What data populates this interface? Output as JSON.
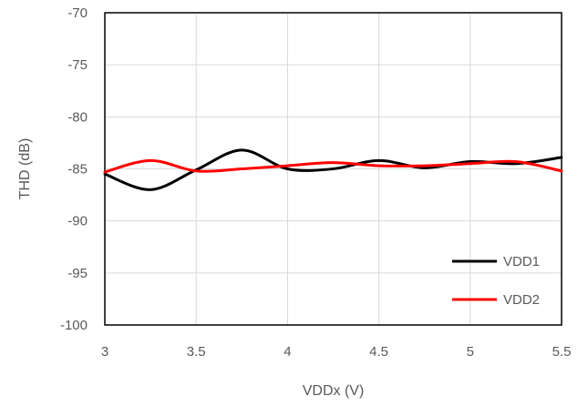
{
  "chart_data": {
    "type": "line",
    "title": "",
    "xlabel": "VDDx (V)",
    "ylabel": "THD (dB)",
    "xlim": [
      3,
      5.5
    ],
    "ylim": [
      -100,
      -70
    ],
    "x_ticks": [
      3,
      3.5,
      4,
      4.5,
      5,
      5.5
    ],
    "x_tick_labels": [
      "3",
      "3.5",
      "4",
      "4.5",
      "5",
      "5.5"
    ],
    "y_ticks": [
      -100,
      -95,
      -90,
      -85,
      -80,
      -75,
      -70
    ],
    "y_tick_labels": [
      "-100",
      "-95",
      "-90",
      "-85",
      "-80",
      "-75",
      "-70"
    ],
    "grid": true,
    "legend_position": "bottom-right",
    "x": [
      3,
      3.25,
      3.5,
      3.75,
      4,
      4.25,
      4.5,
      4.75,
      5,
      5.25,
      5.5
    ],
    "series": [
      {
        "name": "VDD1",
        "color": "#000000",
        "values": [
          -85.5,
          -87.0,
          -85.1,
          -83.2,
          -85.0,
          -85.0,
          -84.2,
          -84.9,
          -84.3,
          -84.5,
          -83.9
        ]
      },
      {
        "name": "VDD2",
        "color": "#ff0000",
        "values": [
          -85.3,
          -84.2,
          -85.2,
          -85.0,
          -84.7,
          -84.4,
          -84.7,
          -84.7,
          -84.5,
          -84.3,
          -85.2
        ]
      }
    ]
  }
}
